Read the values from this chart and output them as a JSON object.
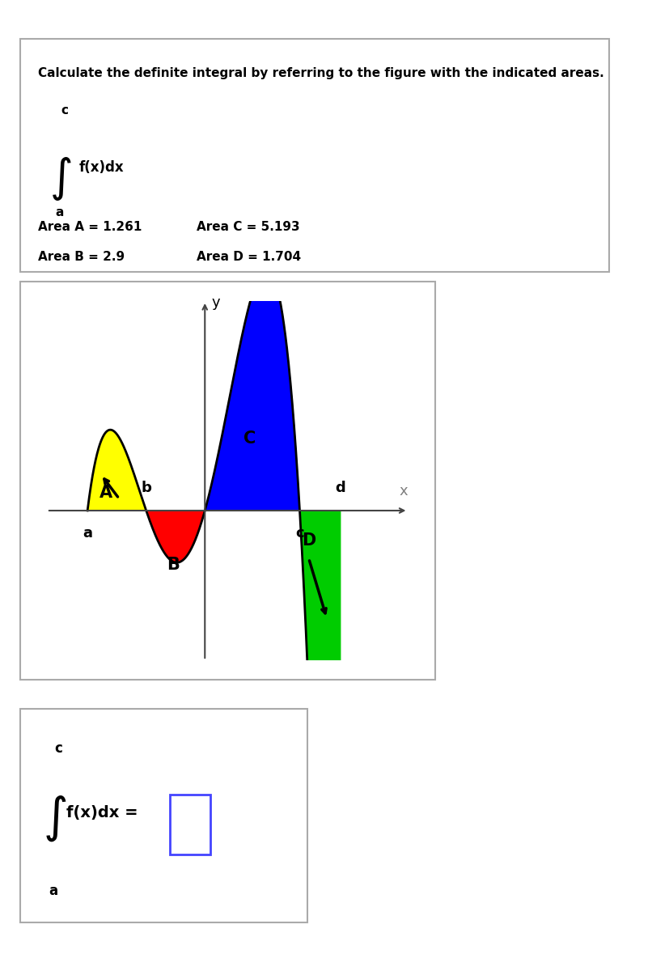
{
  "title": "Calculate the definite integral by referring to the figure with the indicated areas.",
  "integral_upper": "c",
  "integral_lower": "a",
  "integral_expr": "f(x)dx",
  "area_A": 1.261,
  "area_B": 2.9,
  "area_C": 5.193,
  "area_D": 1.704,
  "color_A": "#ffff00",
  "color_B": "#ff0000",
  "color_C": "#0000ff",
  "color_D": "#00cc00",
  "bg_color": "#ffffff",
  "box_border": "#cccccc",
  "answer_box_border": "#4444ff",
  "label_a": "a",
  "label_b": "b",
  "label_c": "c",
  "label_d": "d",
  "label_x": "x",
  "label_y": "y",
  "label_A": "A",
  "label_B": "B",
  "label_C": "C",
  "label_D": "D"
}
